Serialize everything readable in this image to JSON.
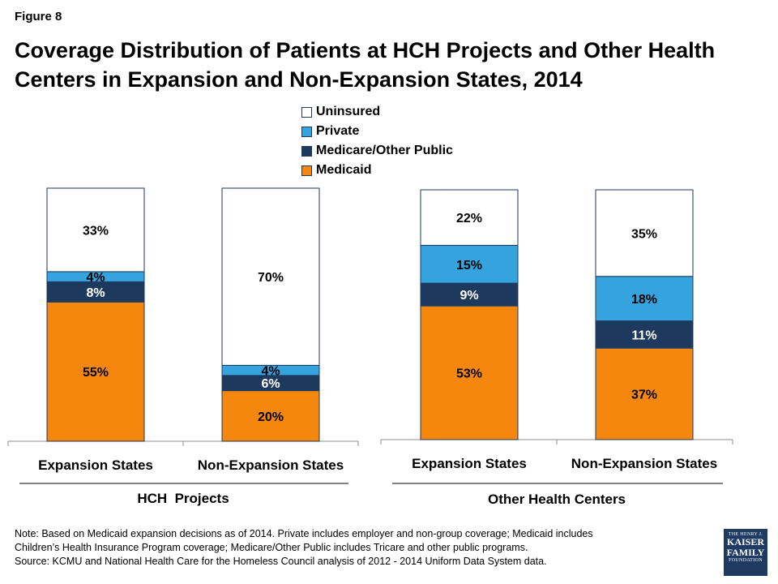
{
  "figure_label": "Figure 8",
  "title": "Coverage Distribution of Patients at HCH Projects and Other Health Centers in Expansion and Non-Expansion States, 2014",
  "legend": [
    {
      "label": "Uninsured",
      "color": "#ffffff"
    },
    {
      "label": "Private",
      "color": "#35a3dd"
    },
    {
      "label": "Medicare/Other Public",
      "color": "#1d3a5e"
    },
    {
      "label": "Medicaid",
      "color": "#f5870f"
    }
  ],
  "chart_data": {
    "type": "bar",
    "stacked": true,
    "segment_order": [
      "Medicaid",
      "Medicare/Other Public",
      "Private",
      "Uninsured"
    ],
    "colors": {
      "Uninsured": "#ffffff",
      "Private": "#35a3dd",
      "Medicare/Other Public": "#1d3a5e",
      "Medicaid": "#f5870f"
    },
    "label_colors": {
      "Uninsured": "#000000",
      "Private": "#000000",
      "Medicare/Other Public": "#ffffff",
      "Medicaid": "#000000"
    },
    "groups": [
      {
        "name": "HCH  Projects",
        "bars": [
          {
            "category": "Expansion States",
            "values": {
              "Medicaid": 55,
              "Medicare/Other Public": 8,
              "Private": 4,
              "Uninsured": 33
            },
            "labels": {
              "Medicaid": "55%",
              "Medicare/Other Public": "8%",
              "Private": "4%",
              "Uninsured": "33%"
            }
          },
          {
            "category": "Non-Expansion States",
            "values": {
              "Medicaid": 20,
              "Medicare/Other Public": 6,
              "Private": 4,
              "Uninsured": 70
            },
            "labels": {
              "Medicaid": "20%",
              "Medicare/Other Public": "6%",
              "Private": "4%",
              "Uninsured": "70%"
            }
          }
        ]
      },
      {
        "name": "Other Health Centers",
        "bars": [
          {
            "category": "Expansion States",
            "values": {
              "Medicaid": 53,
              "Medicare/Other Public": 9,
              "Private": 15,
              "Uninsured": 22
            },
            "labels": {
              "Medicaid": "53%",
              "Medicare/Other Public": "9%",
              "Private": "15%",
              "Uninsured": "22%"
            }
          },
          {
            "category": "Non-Expansion States",
            "values": {
              "Medicaid": 37,
              "Medicare/Other Public": 11,
              "Private": 18,
              "Uninsured": 35
            },
            "labels": {
              "Medicaid": "37%",
              "Medicare/Other Public": "11%",
              "Private": "18%",
              "Uninsured": "35%"
            }
          }
        ]
      }
    ],
    "ylim": [
      0,
      100
    ],
    "grid": false,
    "legend_position": "top-center"
  },
  "note": {
    "line1": "Note: Based on Medicaid expansion decisions as of 2014. Private includes employer and non-group coverage; Medicaid includes",
    "line2": "Children’s Health Insurance Program coverage; Medicare/Other Public includes Tricare and other public programs.",
    "line3": "Source: KCMU and National Health Care for the Homeless Council analysis of 2012 - 2014 Uniform Data System data."
  },
  "logo": {
    "line1": "THE HENRY J.",
    "line2": "KAISER",
    "line3": "FAMILY",
    "line4": "FOUNDATION"
  }
}
